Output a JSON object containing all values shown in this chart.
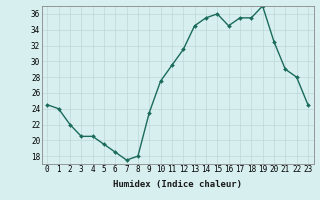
{
  "x": [
    0,
    1,
    2,
    3,
    4,
    5,
    6,
    7,
    8,
    9,
    10,
    11,
    12,
    13,
    14,
    15,
    16,
    17,
    18,
    19,
    20,
    21,
    22,
    23
  ],
  "y": [
    24.5,
    24.0,
    22.0,
    20.5,
    20.5,
    19.5,
    18.5,
    17.5,
    18.0,
    23.5,
    27.5,
    29.5,
    31.5,
    34.5,
    35.5,
    36.0,
    34.5,
    35.5,
    35.5,
    37.0,
    32.5,
    29.0,
    28.0,
    24.5
  ],
  "line_color": "#1a6b5a",
  "marker": "D",
  "marker_size": 2.0,
  "bg_color": "#d8eff0",
  "grid_color": "#c0d8d8",
  "xlabel": "Humidex (Indice chaleur)",
  "ylim": [
    17,
    37
  ],
  "xlim": [
    -0.5,
    23.5
  ],
  "yticks": [
    18,
    20,
    22,
    24,
    26,
    28,
    30,
    32,
    34,
    36
  ],
  "xticks": [
    0,
    1,
    2,
    3,
    4,
    5,
    6,
    7,
    8,
    9,
    10,
    11,
    12,
    13,
    14,
    15,
    16,
    17,
    18,
    19,
    20,
    21,
    22,
    23
  ],
  "tick_fontsize": 5.5,
  "xlabel_fontsize": 6.5,
  "line_width": 1.0
}
